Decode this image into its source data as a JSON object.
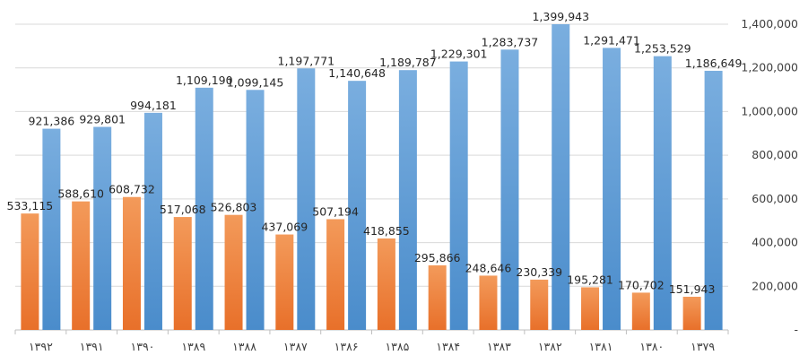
{
  "chart_data": {
    "type": "bar",
    "categories": [
      "۱۳۹۲",
      "۱۳۹۱",
      "۱۳۹۰",
      "۱۳۸۹",
      "۱۳۸۸",
      "۱۳۸۷",
      "۱۳۸۶",
      "۱۳۸۵",
      "۱۳۸۴",
      "۱۳۸۳",
      "۱۳۸۲",
      "۱۳۸۱",
      "۱۳۸۰",
      "۱۳۷۹"
    ],
    "series": [
      {
        "color": "#ED7D31",
        "values": [
          533115,
          588610,
          608732,
          517068,
          526803,
          437069,
          507194,
          418855,
          295866,
          248646,
          230339,
          195281,
          170702,
          151943
        ],
        "labels": [
          "533,115",
          "588,610",
          "608,732",
          "517,068",
          "526,803",
          "437,069",
          "507,194",
          "418,855",
          "295,866",
          "248,646",
          "230,339",
          "195,281",
          "170,702",
          "151,943"
        ]
      },
      {
        "color": "#5B9BD5",
        "values": [
          921386,
          929801,
          994181,
          1109190,
          1099145,
          1197771,
          1140648,
          1189787,
          1229301,
          1283737,
          1399943,
          1291471,
          1253529,
          1186649
        ],
        "labels": [
          "921,386",
          "929,801",
          "994,181",
          "1,109,190",
          "1,099,145",
          "1,197,771",
          "1,140,648",
          "1,189,787",
          "1,229,301",
          "1,283,737",
          "1,399,943",
          "1,291,471",
          "1,253,529",
          "1,186,649"
        ]
      }
    ],
    "y_axis": {
      "position": "right",
      "ylim": [
        0,
        1400000
      ],
      "ticks": [
        0,
        200000,
        400000,
        600000,
        800000,
        1000000,
        1200000,
        1400000
      ],
      "tick_labels": [
        "-",
        "200,000",
        "400,000",
        "600,000",
        "800,000",
        "1,000,000",
        "1,200,000",
        "1,400,000"
      ]
    },
    "grid": true,
    "legend": "none"
  }
}
